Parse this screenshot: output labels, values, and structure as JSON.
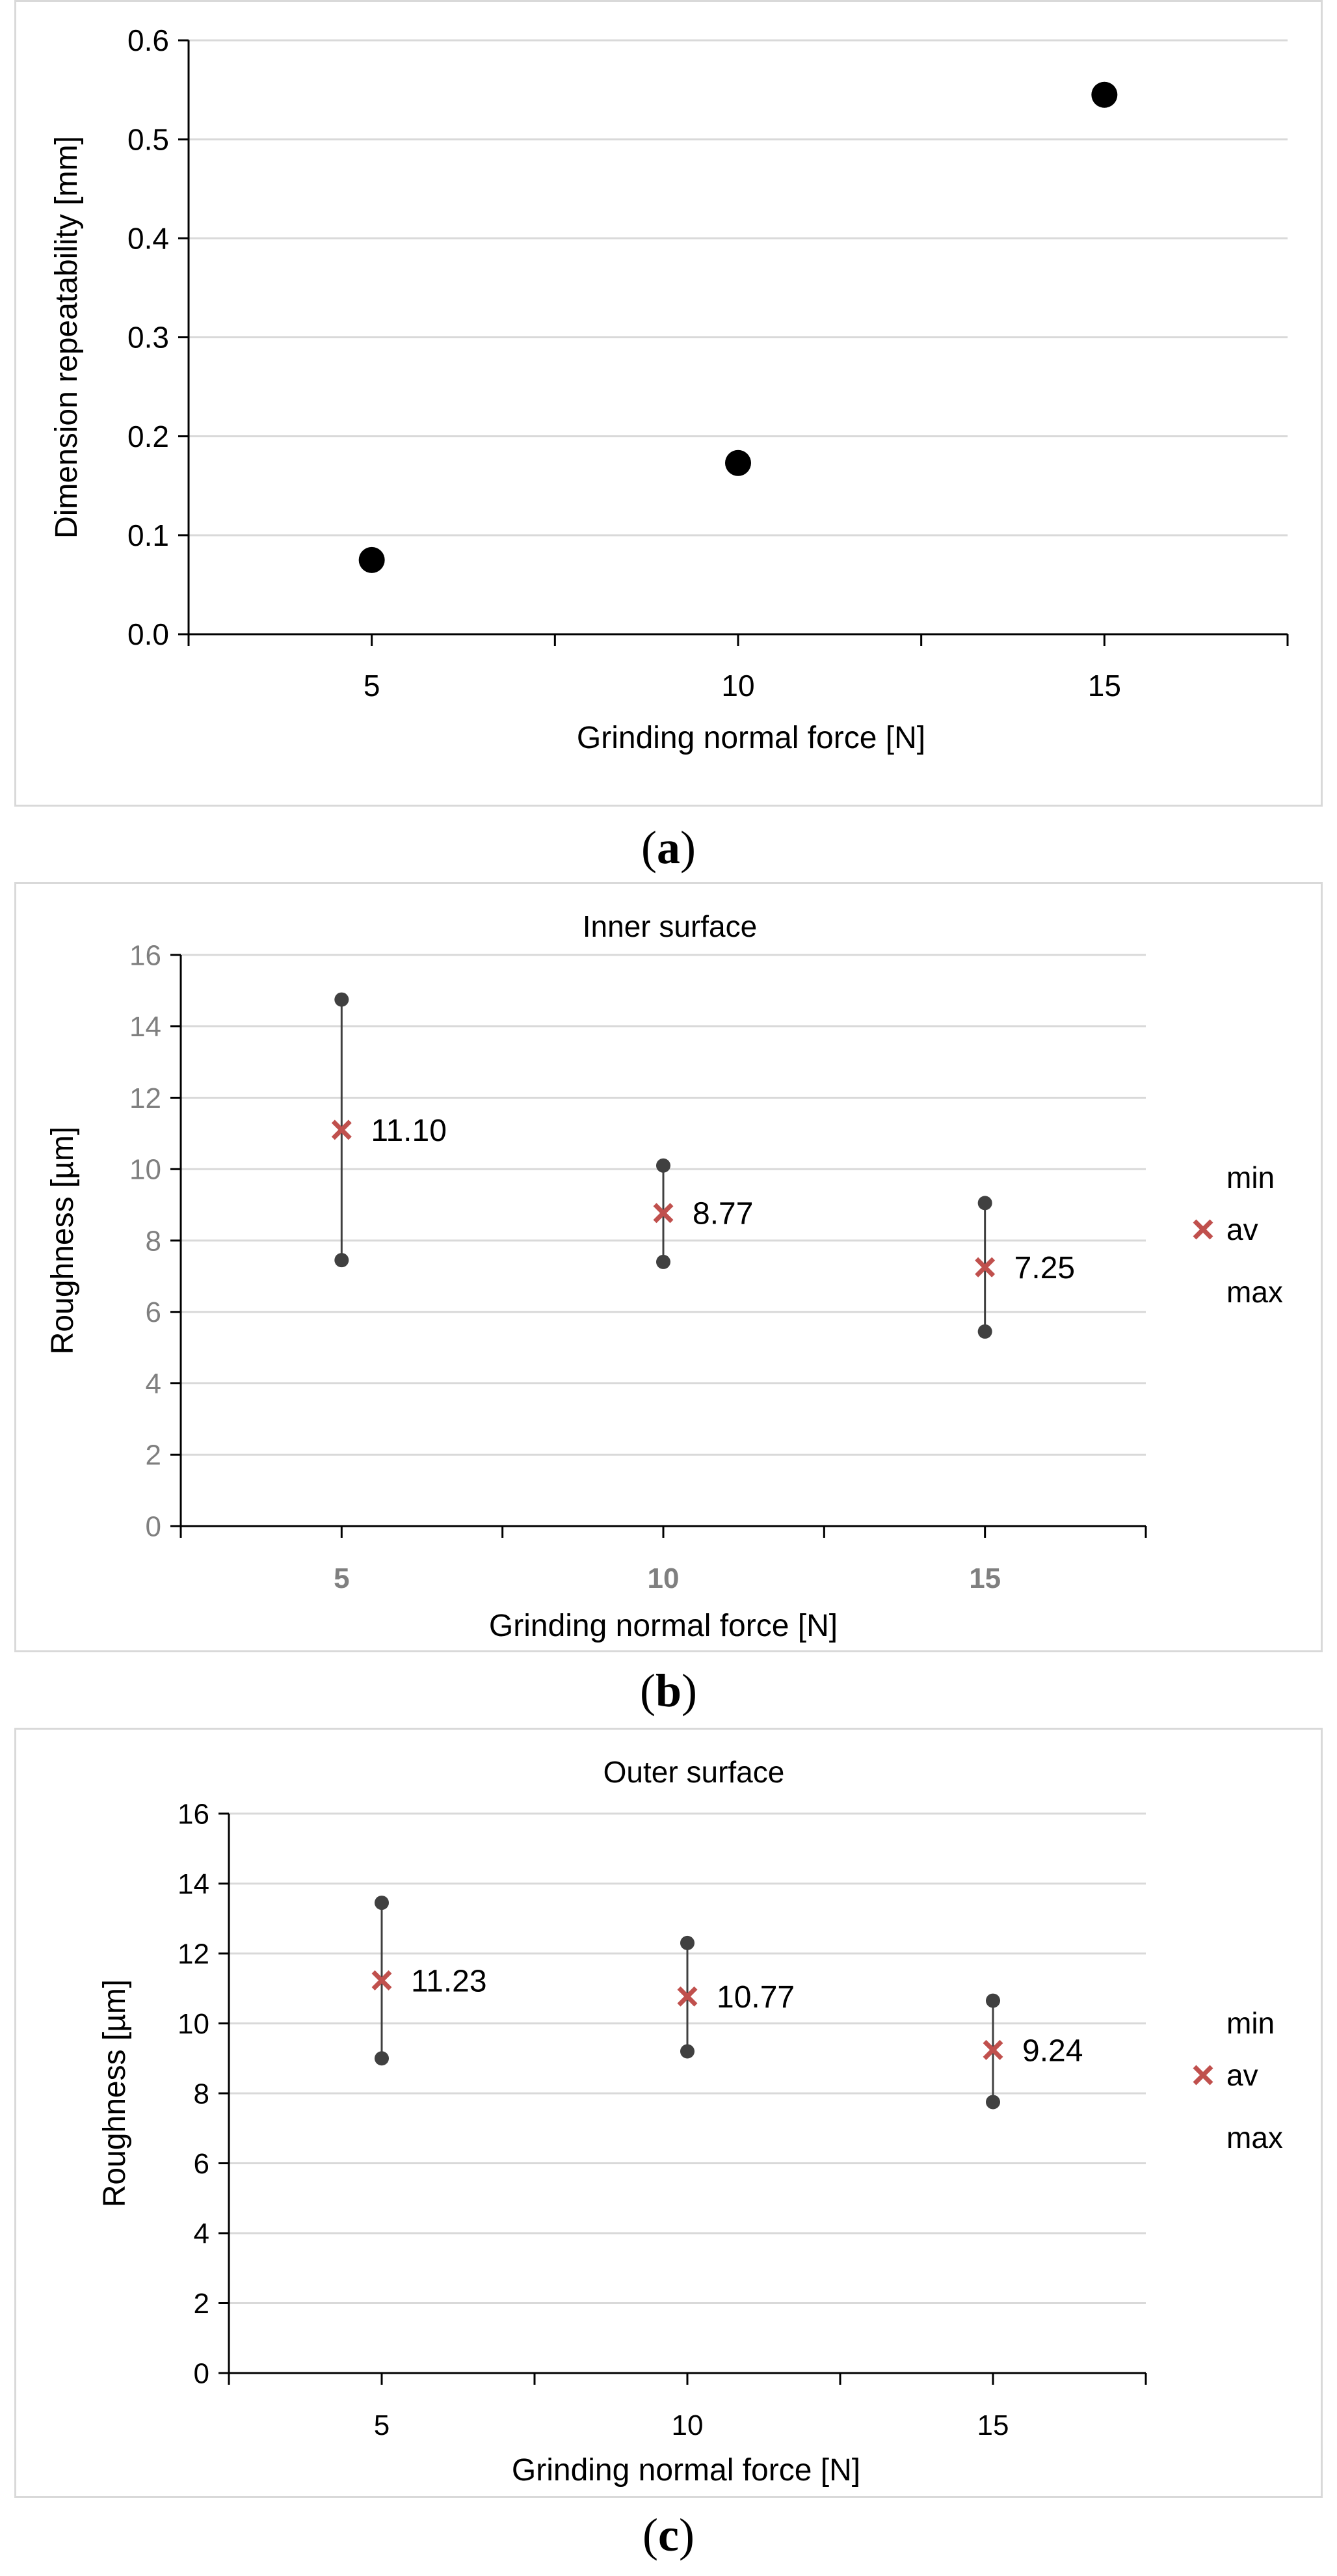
{
  "captions": {
    "a": "a",
    "b": "b",
    "c": "c"
  },
  "colors": {
    "dot": "#000000",
    "marker": "#c0504d",
    "range": "#404040",
    "grid": "#d9d9d9",
    "axis": "#000000",
    "tick_b": "#7f7f7f"
  },
  "chart_data": [
    {
      "id": "a",
      "type": "scatter",
      "title": "",
      "xlabel": "Grinding normal force [N]",
      "ylabel": "Dimension repeatability [mm]",
      "x": [
        5,
        10,
        15
      ],
      "y": [
        0.075,
        0.173,
        0.545
      ],
      "xlim": [
        2.5,
        17.5
      ],
      "ylim": [
        0,
        0.6
      ],
      "xticks": [
        "5",
        "10",
        "15"
      ],
      "yticks": [
        "0.0",
        "0.1",
        "0.2",
        "0.3",
        "0.4",
        "0.5",
        "0.6"
      ],
      "grid": true
    },
    {
      "id": "b",
      "type": "scatter",
      "title": "Inner surface",
      "xlabel": "Grinding normal force [N]",
      "ylabel": "Roughness [µm]",
      "x": [
        5,
        10,
        15
      ],
      "series": [
        {
          "name": "min",
          "values": [
            7.45,
            7.4,
            5.45
          ]
        },
        {
          "name": "av",
          "values": [
            11.1,
            8.77,
            7.25
          ]
        },
        {
          "name": "max",
          "values": [
            14.75,
            10.1,
            9.05
          ]
        }
      ],
      "data_labels": [
        "11.10",
        "8.77",
        "7.25"
      ],
      "xlim": [
        2.5,
        17.5
      ],
      "ylim": [
        0,
        16
      ],
      "xticks": [
        "5",
        "10",
        "15"
      ],
      "yticks": [
        "0",
        "2",
        "4",
        "6",
        "8",
        "10",
        "12",
        "14",
        "16"
      ],
      "legend": [
        "min",
        "av",
        "max"
      ],
      "grid": true
    },
    {
      "id": "c",
      "type": "scatter",
      "title": "Outer surface",
      "xlabel": "Grinding normal force [N]",
      "ylabel": "Roughness [µm]",
      "x": [
        5,
        10,
        15
      ],
      "series": [
        {
          "name": "min",
          "values": [
            9.0,
            9.2,
            7.75
          ]
        },
        {
          "name": "av",
          "values": [
            11.23,
            10.77,
            9.24
          ]
        },
        {
          "name": "max",
          "values": [
            13.45,
            12.3,
            10.65
          ]
        }
      ],
      "data_labels": [
        "11.23",
        "10.77",
        "9.24"
      ],
      "xlim": [
        2.5,
        17.5
      ],
      "ylim": [
        0,
        16
      ],
      "xticks": [
        "5",
        "10",
        "15"
      ],
      "yticks": [
        "0",
        "2",
        "4",
        "6",
        "8",
        "10",
        "12",
        "14",
        "16"
      ],
      "legend": [
        "min",
        "av",
        "max"
      ],
      "grid": true
    }
  ]
}
